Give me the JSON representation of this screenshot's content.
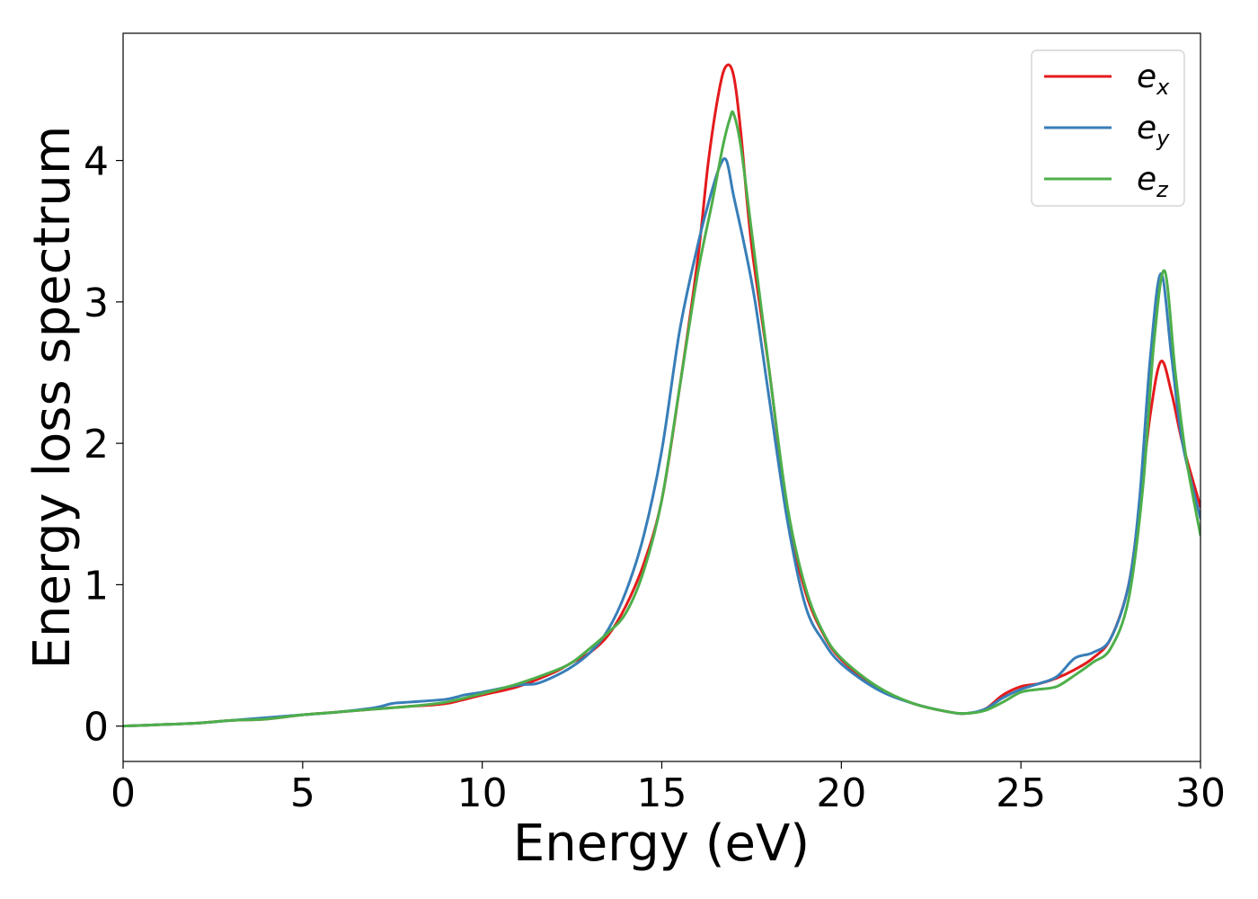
{
  "chart_data": {
    "type": "line",
    "title": "",
    "xlabel": "Energy (eV)",
    "ylabel": "Energy loss spectrum",
    "xlim": [
      0,
      30
    ],
    "ylim": [
      -0.25,
      4.9
    ],
    "xticks": [
      0,
      5,
      10,
      15,
      20,
      25,
      30
    ],
    "yticks": [
      0,
      1,
      2,
      3,
      4
    ],
    "grid": false,
    "legend_position": "top-right",
    "series": [
      {
        "name_base": "e",
        "name_sub": "x",
        "color": "#e41a1c",
        "x": [
          0,
          1,
          2,
          3,
          4,
          5,
          6,
          7,
          8,
          9,
          10,
          11,
          12,
          12.5,
          13,
          13.5,
          14,
          14.5,
          15,
          15.5,
          16,
          16.3,
          16.6,
          16.8,
          17.0,
          17.2,
          17.5,
          18,
          18.5,
          19,
          19.5,
          20,
          21,
          22,
          23,
          23.5,
          24,
          24.5,
          25,
          25.5,
          26,
          26.5,
          27,
          27.5,
          28,
          28.3,
          28.6,
          28.9,
          29.2,
          29.5,
          30
        ],
        "y": [
          0,
          0.01,
          0.02,
          0.04,
          0.05,
          0.08,
          0.1,
          0.12,
          0.14,
          0.16,
          0.22,
          0.28,
          0.38,
          0.45,
          0.52,
          0.64,
          0.85,
          1.15,
          1.6,
          2.4,
          3.3,
          4.0,
          4.5,
          4.67,
          4.6,
          4.2,
          3.4,
          2.5,
          1.5,
          0.95,
          0.65,
          0.47,
          0.27,
          0.16,
          0.1,
          0.09,
          0.12,
          0.22,
          0.28,
          0.3,
          0.34,
          0.4,
          0.48,
          0.62,
          1.0,
          1.55,
          2.2,
          2.58,
          2.35,
          2.0,
          1.55
        ]
      },
      {
        "name_base": "e",
        "name_sub": "y",
        "color": "#377eb8",
        "x": [
          0,
          1,
          2,
          3,
          4,
          5,
          6,
          7,
          7.5,
          8,
          9,
          9.5,
          10,
          11,
          11.5,
          12,
          12.5,
          13,
          13.5,
          14,
          14.5,
          15,
          15.5,
          16,
          16.3,
          16.6,
          16.8,
          17.0,
          17.3,
          17.6,
          18,
          18.5,
          19,
          19.5,
          20,
          21,
          22,
          23,
          23.5,
          24,
          24.5,
          25,
          25.5,
          26,
          26.5,
          27,
          27.5,
          28,
          28.3,
          28.6,
          28.9,
          29.2,
          29.5,
          30
        ],
        "y": [
          0,
          0.01,
          0.02,
          0.04,
          0.06,
          0.08,
          0.1,
          0.13,
          0.16,
          0.17,
          0.19,
          0.22,
          0.24,
          0.29,
          0.3,
          0.35,
          0.42,
          0.52,
          0.68,
          0.95,
          1.35,
          1.95,
          2.8,
          3.4,
          3.7,
          3.95,
          4.0,
          3.75,
          3.4,
          3.0,
          2.3,
          1.45,
          0.85,
          0.6,
          0.44,
          0.26,
          0.16,
          0.1,
          0.09,
          0.12,
          0.2,
          0.26,
          0.3,
          0.35,
          0.48,
          0.52,
          0.62,
          1.0,
          1.6,
          2.6,
          3.2,
          2.6,
          2.0,
          1.47
        ]
      },
      {
        "name_base": "e",
        "name_sub": "z",
        "color": "#4daf4a",
        "x": [
          0,
          1,
          2,
          3,
          4,
          5,
          6,
          7,
          8,
          9,
          10,
          11,
          12,
          12.5,
          13,
          13.5,
          14,
          14.5,
          15,
          15.5,
          16,
          16.4,
          16.7,
          16.9,
          17.0,
          17.2,
          17.5,
          18,
          18.5,
          19,
          19.5,
          20,
          21,
          22,
          23,
          23.5,
          24,
          24.5,
          25,
          25.5,
          26,
          26.5,
          27,
          27.5,
          28,
          28.4,
          28.7,
          29.0,
          29.3,
          29.6,
          30
        ],
        "y": [
          0,
          0.01,
          0.02,
          0.04,
          0.05,
          0.08,
          0.1,
          0.12,
          0.14,
          0.17,
          0.23,
          0.3,
          0.39,
          0.45,
          0.55,
          0.66,
          0.8,
          1.1,
          1.6,
          2.4,
          3.2,
          3.7,
          4.1,
          4.3,
          4.33,
          4.1,
          3.5,
          2.5,
          1.55,
          0.98,
          0.66,
          0.48,
          0.28,
          0.16,
          0.1,
          0.09,
          0.11,
          0.17,
          0.24,
          0.26,
          0.28,
          0.36,
          0.45,
          0.55,
          0.9,
          1.7,
          2.7,
          3.22,
          2.5,
          1.9,
          1.35
        ]
      }
    ]
  }
}
